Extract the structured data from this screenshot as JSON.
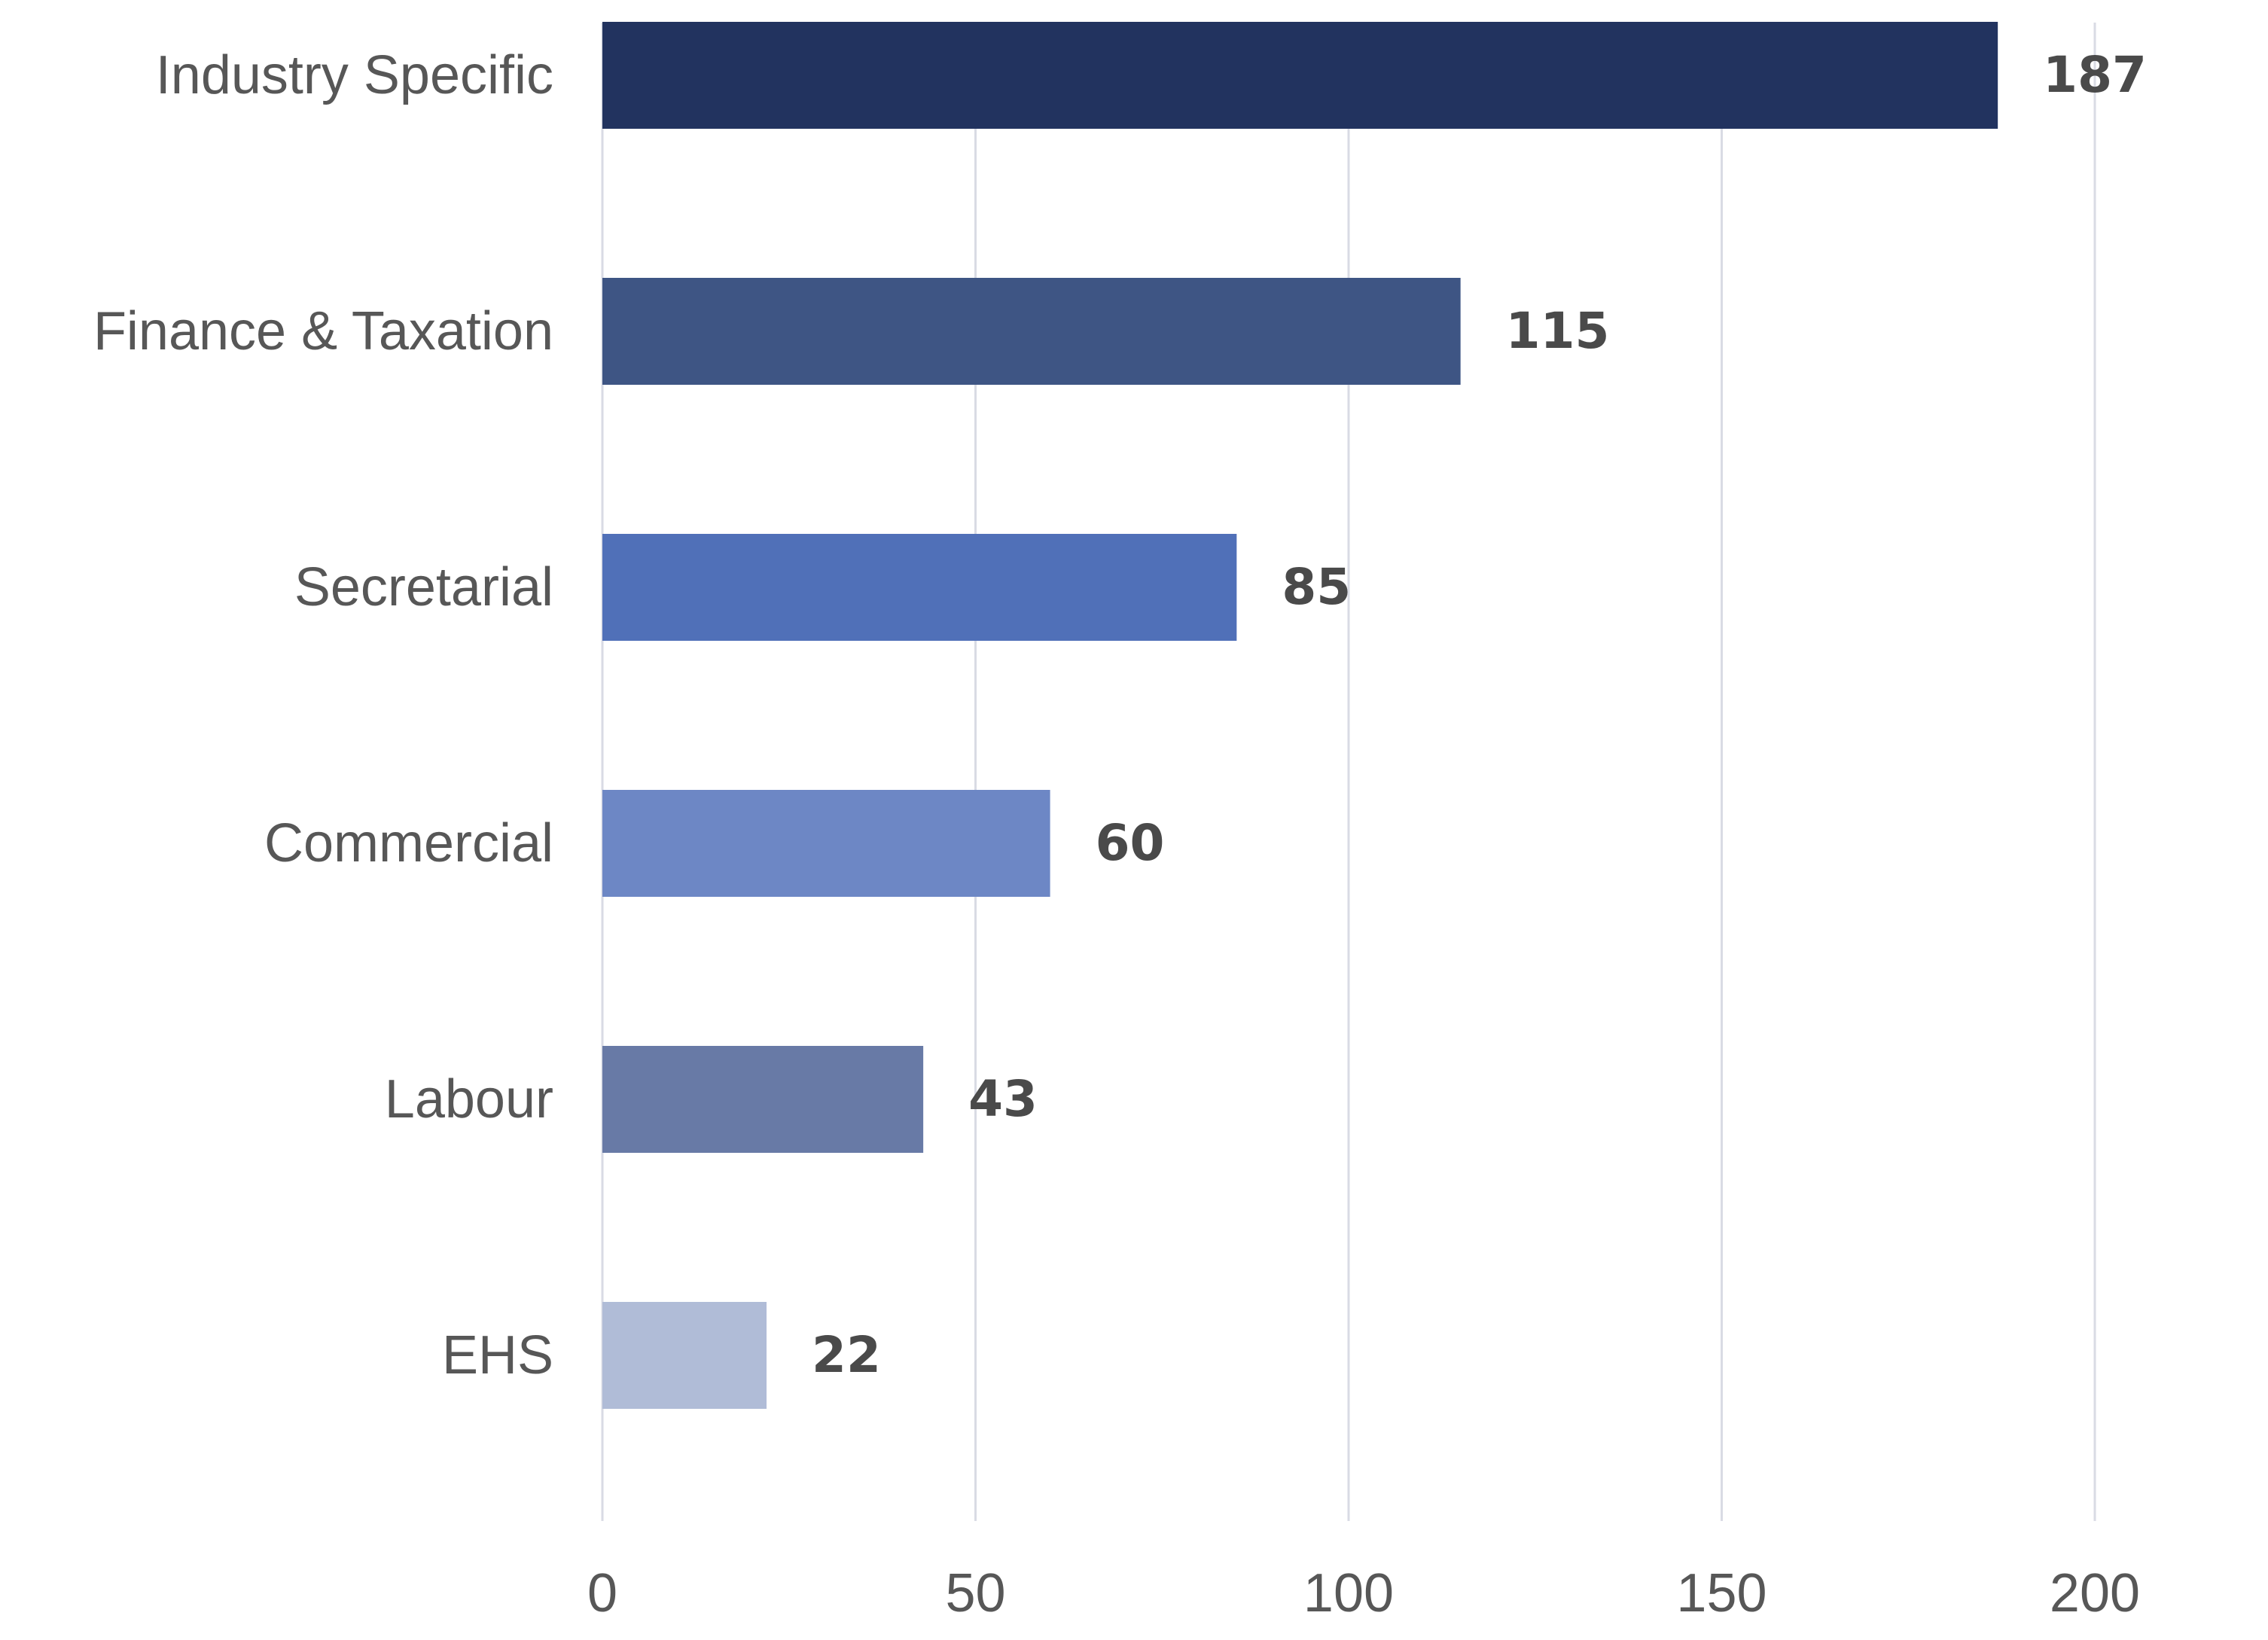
{
  "chart_data": {
    "type": "bar",
    "orientation": "horizontal",
    "title": "",
    "xlabel": "",
    "ylabel": "",
    "categories": [
      "Industry Specific",
      "Finance & Taxation",
      "Secretarial",
      "Commercial",
      "Labour",
      "EHS"
    ],
    "values": [
      187,
      115,
      85,
      60,
      43,
      22
    ],
    "value_labels": [
      "187",
      "115",
      "85",
      "60",
      "43",
      "22"
    ],
    "bar_colors": [
      "#22335f",
      "#3e5584",
      "#5070b8",
      "#6d87c5",
      "#687aa6",
      "#b0bcd7"
    ],
    "xlim": [
      0,
      200
    ],
    "xticks": [
      0,
      50,
      100,
      150,
      200
    ],
    "xtick_labels": [
      "0",
      "50",
      "100",
      "150",
      "200"
    ],
    "grid": "vertical",
    "legend": "none"
  }
}
